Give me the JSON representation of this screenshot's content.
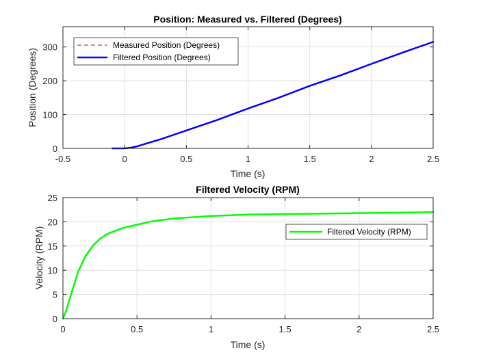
{
  "chart_data": [
    {
      "type": "line",
      "title": "Position: Measured vs. Filtered (Degrees)",
      "xlabel": "Time (s)",
      "ylabel": "Position (Degrees)",
      "xlim": [
        -0.5,
        2.5
      ],
      "ylim": [
        0,
        360
      ],
      "xticks": [
        "-0.5",
        "0",
        "0.5",
        "1",
        "1.5",
        "2",
        "2.5"
      ],
      "xtick_values": [
        -0.5,
        0,
        0.5,
        1,
        1.5,
        2,
        2.5
      ],
      "yticks": [
        "0",
        "100",
        "200",
        "300"
      ],
      "ytick_values": [
        0,
        100,
        200,
        300
      ],
      "grid": true,
      "legend_position": "top-left",
      "series": [
        {
          "name": "Measured Position (Degrees)",
          "color": "#cc0000",
          "style": "dashed",
          "x": [
            -0.1,
            0,
            0.05,
            0.1,
            0.2,
            0.3,
            0.5,
            0.75,
            1.0,
            1.25,
            1.5,
            1.75,
            2.0,
            2.25,
            2.5
          ],
          "y": [
            0,
            0,
            2,
            6,
            17,
            28,
            53,
            84,
            118,
            150,
            185,
            216,
            250,
            283,
            315
          ]
        },
        {
          "name": "Filtered Position (Degrees)",
          "color": "#0000ff",
          "style": "solid",
          "x": [
            -0.1,
            0,
            0.05,
            0.1,
            0.2,
            0.3,
            0.5,
            0.75,
            1.0,
            1.25,
            1.5,
            1.75,
            2.0,
            2.25,
            2.5
          ],
          "y": [
            0,
            0,
            2,
            6,
            17,
            28,
            53,
            84,
            118,
            150,
            185,
            216,
            250,
            283,
            315
          ]
        }
      ]
    },
    {
      "type": "line",
      "title": "Filtered Velocity (RPM)",
      "xlabel": "Time (s)",
      "ylabel": "Velocity (RPM)",
      "xlim": [
        0,
        2.5
      ],
      "ylim": [
        0,
        25
      ],
      "xticks": [
        "0",
        "0.5",
        "1",
        "1.5",
        "2",
        "2.5"
      ],
      "xtick_values": [
        0,
        0.5,
        1,
        1.5,
        2,
        2.5
      ],
      "yticks": [
        "0",
        "5",
        "10",
        "15",
        "20",
        "25"
      ],
      "ytick_values": [
        0,
        5,
        10,
        15,
        20,
        25
      ],
      "grid": true,
      "legend_position": "right",
      "series": [
        {
          "name": "Filtered Velocity (RPM)",
          "color": "#00ff00",
          "style": "solid",
          "x": [
            0,
            0.02,
            0.05,
            0.1,
            0.15,
            0.2,
            0.25,
            0.3,
            0.4,
            0.5,
            0.6,
            0.75,
            1.0,
            1.25,
            1.5,
            1.75,
            2.0,
            2.25,
            2.5
          ],
          "y": [
            0,
            1.5,
            4.5,
            9.5,
            12.8,
            15.0,
            16.5,
            17.5,
            18.7,
            19.4,
            20.1,
            20.7,
            21.2,
            21.5,
            21.6,
            21.7,
            21.8,
            21.9,
            22.0
          ]
        }
      ]
    }
  ]
}
